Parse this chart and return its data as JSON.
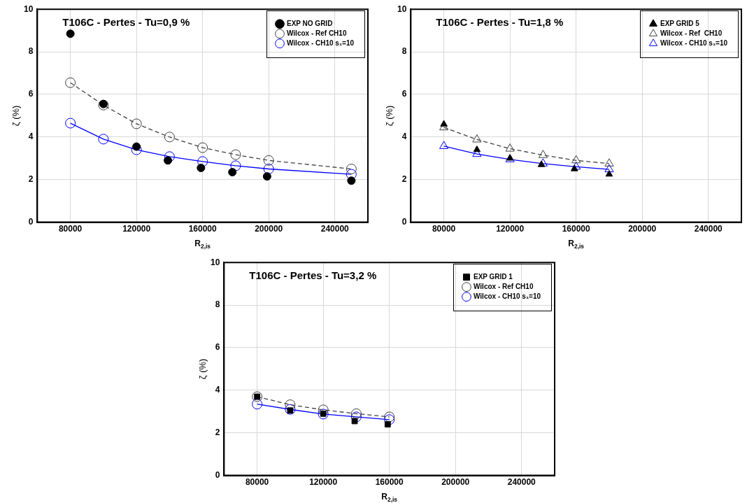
{
  "chart_data": [
    {
      "type": "line",
      "title": "T106C - Pertes - Tu=0,9 %",
      "xlabel": "R$_{2,is}$",
      "ylabel": "ζ (%)",
      "xlim": [
        60000,
        260000
      ],
      "xticks": [
        80000,
        120000,
        160000,
        200000,
        240000
      ],
      "ylim": [
        0,
        10
      ],
      "yticks": [
        0,
        2,
        4,
        6,
        8,
        10
      ],
      "grid": true,
      "legend": "top right",
      "series": [
        {
          "name": "EXP NO GRID",
          "type": "scatter",
          "marker": "circle",
          "color": "#000000",
          "x": [
            80000,
            100000,
            120000,
            139000,
            159000,
            178000,
            199000,
            250000
          ],
          "values": [
            8.85,
            5.55,
            3.55,
            2.9,
            2.55,
            2.35,
            2.15,
            1.95
          ]
        },
        {
          "name": "Wilcox - Ref CH10",
          "type": "line",
          "marker": "circle",
          "line_style": "dashed",
          "color": "#404040",
          "x": [
            80000,
            100000,
            120000,
            140000,
            160000,
            180000,
            200000,
            250000
          ],
          "values": [
            6.55,
            5.5,
            4.62,
            4.0,
            3.5,
            3.17,
            2.9,
            2.5
          ]
        },
        {
          "name": "Wilcox - CH10 s₁=10",
          "type": "line",
          "marker": "circle",
          "line_style": "solid",
          "color": "#0000ff",
          "x": [
            80000,
            100000,
            120000,
            140000,
            160000,
            180000,
            200000,
            250000
          ],
          "values": [
            4.65,
            3.9,
            3.4,
            3.08,
            2.85,
            2.65,
            2.5,
            2.25
          ]
        }
      ]
    },
    {
      "type": "line",
      "title": "T106C - Pertes - Tu=1,8 %",
      "xlabel": "R$_{2,is}$",
      "ylabel": "ζ (%)",
      "xlim": [
        60000,
        260000
      ],
      "xticks": [
        80000,
        120000,
        160000,
        200000,
        240000
      ],
      "ylim": [
        0,
        10
      ],
      "yticks": [
        0,
        2,
        4,
        6,
        8,
        10
      ],
      "grid": true,
      "legend": "top right",
      "series": [
        {
          "name": "EXP GRID 5",
          "type": "scatter",
          "marker": "triangle",
          "color": "#000000",
          "x": [
            80000,
            100000,
            120000,
            139000,
            159000,
            180000
          ],
          "values": [
            4.6,
            3.4,
            3.0,
            2.7,
            2.5,
            2.25
          ]
        },
        {
          "name": "Wilcox - Ref  CH10",
          "type": "line",
          "marker": "triangle",
          "line_style": "dashed",
          "color": "#404040",
          "x": [
            80000,
            100000,
            120000,
            140000,
            160000,
            180000
          ],
          "values": [
            4.45,
            3.88,
            3.45,
            3.15,
            2.9,
            2.75
          ]
        },
        {
          "name": "Wilcox - CH10 s₁=10",
          "type": "line",
          "marker": "triangle",
          "line_style": "solid",
          "color": "#0000ff",
          "x": [
            80000,
            100000,
            120000,
            140000,
            160000,
            180000
          ],
          "values": [
            3.57,
            3.2,
            2.95,
            2.75,
            2.6,
            2.48
          ]
        }
      ]
    },
    {
      "type": "line",
      "title": "T106C - Pertes - Tu=3,2 %",
      "xlabel": "R$_{2,is}$",
      "ylabel": "ζ (%)",
      "xlim": [
        60000,
        260000
      ],
      "xticks": [
        80000,
        120000,
        160000,
        200000,
        240000
      ],
      "ylim": [
        0,
        10
      ],
      "yticks": [
        0,
        2,
        4,
        6,
        8,
        10
      ],
      "grid": true,
      "legend": "top right",
      "series": [
        {
          "name": "EXP GRID 1",
          "type": "scatter",
          "marker": "square",
          "color": "#000000",
          "x": [
            80000,
            100000,
            120000,
            139000,
            159000
          ],
          "values": [
            3.7,
            3.05,
            2.9,
            2.55,
            2.4
          ]
        },
        {
          "name": "Wilcox - Ref CH10",
          "type": "line",
          "marker": "circle",
          "line_style": "dashed",
          "color": "#404040",
          "x": [
            80000,
            100000,
            120000,
            140000,
            160000
          ],
          "values": [
            3.7,
            3.32,
            3.08,
            2.9,
            2.75
          ]
        },
        {
          "name": "Wilcox - CH10 s₁=10",
          "type": "line",
          "marker": "circle",
          "line_style": "solid",
          "color": "#0000ff",
          "x": [
            80000,
            100000,
            120000,
            140000,
            160000
          ],
          "values": [
            3.35,
            3.1,
            2.88,
            2.75,
            2.62
          ]
        }
      ]
    }
  ]
}
